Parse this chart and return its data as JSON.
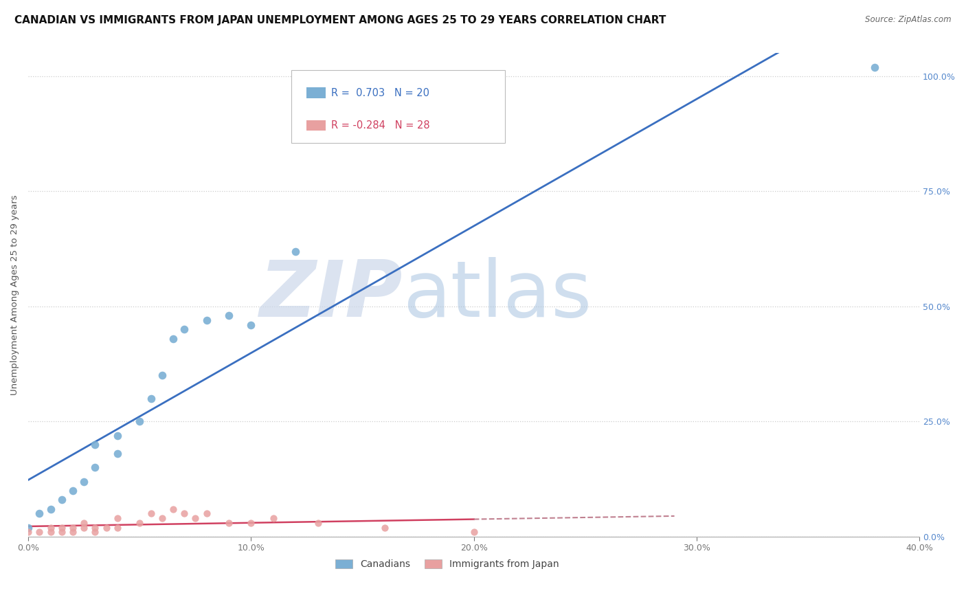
{
  "title": "CANADIAN VS IMMIGRANTS FROM JAPAN UNEMPLOYMENT AMONG AGES 25 TO 29 YEARS CORRELATION CHART",
  "source": "Source: ZipAtlas.com",
  "ylabel": "Unemployment Among Ages 25 to 29 years",
  "xlim": [
    0.0,
    0.4
  ],
  "ylim": [
    0.0,
    1.05
  ],
  "canadians_x": [
    0.0,
    0.005,
    0.01,
    0.015,
    0.02,
    0.025,
    0.03,
    0.03,
    0.04,
    0.04,
    0.05,
    0.055,
    0.06,
    0.065,
    0.07,
    0.08,
    0.09,
    0.1,
    0.12,
    0.38
  ],
  "canadians_y": [
    0.02,
    0.05,
    0.06,
    0.08,
    0.1,
    0.12,
    0.15,
    0.2,
    0.18,
    0.22,
    0.25,
    0.3,
    0.35,
    0.43,
    0.45,
    0.47,
    0.48,
    0.46,
    0.62,
    1.02
  ],
  "japan_x": [
    0.0,
    0.005,
    0.01,
    0.01,
    0.015,
    0.015,
    0.02,
    0.02,
    0.025,
    0.025,
    0.03,
    0.03,
    0.035,
    0.04,
    0.04,
    0.05,
    0.055,
    0.06,
    0.065,
    0.07,
    0.075,
    0.08,
    0.09,
    0.1,
    0.11,
    0.13,
    0.16,
    0.2
  ],
  "japan_y": [
    0.01,
    0.01,
    0.01,
    0.02,
    0.01,
    0.02,
    0.01,
    0.02,
    0.02,
    0.03,
    0.01,
    0.02,
    0.02,
    0.02,
    0.04,
    0.03,
    0.05,
    0.04,
    0.06,
    0.05,
    0.04,
    0.05,
    0.03,
    0.03,
    0.04,
    0.03,
    0.02,
    0.01
  ],
  "canadian_color": "#7bafd4",
  "japan_color": "#e8a0a0",
  "canadian_line_color": "#3a6fc0",
  "japan_line_color": "#d04060",
  "japan_line_dash_color": "#c08090",
  "R_canadian": 0.703,
  "N_canadian": 20,
  "R_japan": -0.284,
  "N_japan": 28,
  "watermark_zip": "ZIP",
  "watermark_atlas": "atlas",
  "legend_canadians": "Canadians",
  "legend_japan": "Immigrants from Japan",
  "title_fontsize": 11,
  "axis_label_fontsize": 9.5,
  "tick_fontsize": 9,
  "right_tick_color": "#5588cc"
}
